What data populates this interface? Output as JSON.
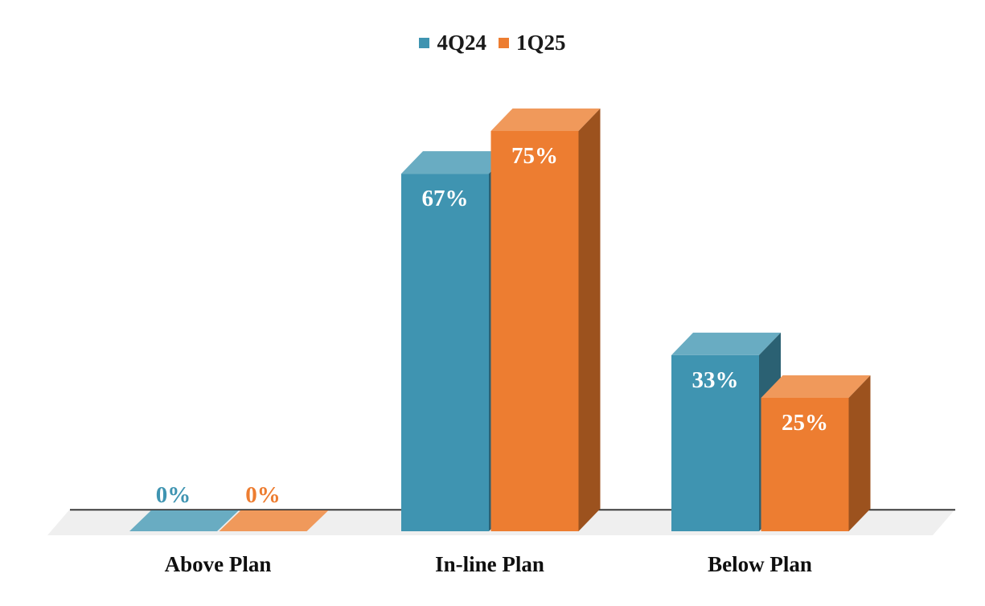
{
  "chart_data": {
    "type": "bar",
    "style": "3d-column",
    "title": "",
    "xlabel": "",
    "ylabel": "",
    "categories": [
      "Above Plan",
      "In-line Plan",
      "Below Plan"
    ],
    "series": [
      {
        "name": "4Q24",
        "values": [
          0,
          67,
          33
        ],
        "labels": [
          "0%",
          "67%",
          "33%"
        ],
        "color": "#3F94B1",
        "color_top": "#69ACC2",
        "color_side": "#2B6173"
      },
      {
        "name": "1Q25",
        "values": [
          0,
          75,
          25
        ],
        "labels": [
          "0%",
          "75%",
          "25%"
        ],
        "color": "#ED7D31",
        "color_top": "#F0995B",
        "color_side": "#9C521E"
      }
    ],
    "ylim": [
      0,
      100
    ],
    "y_axis_visible": false,
    "grid": false,
    "legend_position": "top-center",
    "label_color_inside": "#FFFFFF",
    "floor_color": "#EFEFEF",
    "axis_line_color": "#2E2E2E",
    "text_color": "#0F0F0F"
  },
  "legend": {
    "items": [
      {
        "label": "4Q24",
        "color": "#3F94B1"
      },
      {
        "label": "1Q25",
        "color": "#ED7D31"
      }
    ]
  }
}
